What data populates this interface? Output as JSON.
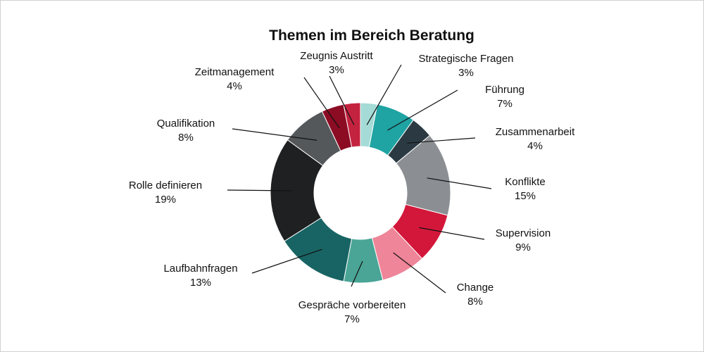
{
  "chart_data": {
    "type": "pie",
    "title": "Themen im Bereich Beratung",
    "slices": [
      {
        "label": "Strategische Fragen",
        "value": 3,
        "value_label": "3%",
        "color": "#a4dbd6"
      },
      {
        "label": "Führung",
        "value": 7,
        "value_label": "7%",
        "color": "#1fa3a3"
      },
      {
        "label": "Zusammenarbeit",
        "value": 4,
        "value_label": "4%",
        "color": "#2b3a42"
      },
      {
        "label": "Konflikte",
        "value": 15,
        "value_label": "15%",
        "color": "#8b8f93"
      },
      {
        "label": "Supervision",
        "value": 9,
        "value_label": "9%",
        "color": "#d3173a"
      },
      {
        "label": "Change",
        "value": 8,
        "value_label": "8%",
        "color": "#ee8598"
      },
      {
        "label": "Gespräche vorbereiten",
        "value": 7,
        "value_label": "7%",
        "color": "#4aa596"
      },
      {
        "label": "Laufbahnfragen",
        "value": 13,
        "value_label": "13%",
        "color": "#186464"
      },
      {
        "label": "Rolle definieren",
        "value": 19,
        "value_label": "19%",
        "color": "#1e2022"
      },
      {
        "label": "Qualifikation",
        "value": 8,
        "value_label": "8%",
        "color": "#55585b"
      },
      {
        "label": "Zeitmanagement",
        "value": 4,
        "value_label": "4%",
        "color": "#8c0c24"
      },
      {
        "label": "Zeugnis Austritt",
        "value": 3,
        "value_label": "3%",
        "color": "#c42340"
      }
    ]
  }
}
